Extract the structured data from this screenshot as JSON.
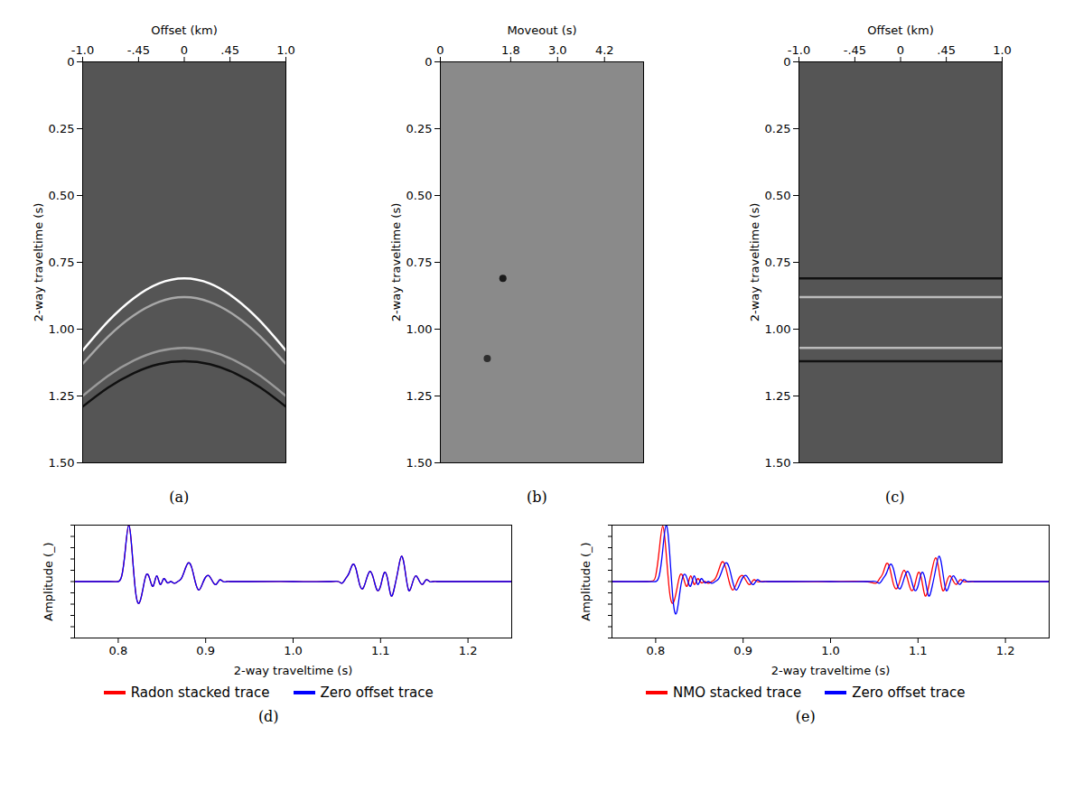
{
  "chart_data": [
    {
      "type": "gather",
      "title": "(a)",
      "x_label": "Offset (km)",
      "y_label": "2-way traveltime (s)",
      "color": "#555555",
      "x": [
        -1.0,
        -0.75,
        -0.5,
        -0.25,
        0,
        0.25,
        0.5,
        0.75,
        1.0
      ],
      "series": [
        {
          "color": "#ffffff",
          "values": [
            1.08,
            0.971,
            0.885,
            0.829,
            0.81,
            0.829,
            0.885,
            0.971,
            1.08
          ]
        },
        {
          "color": "#a8a8a8",
          "values": [
            1.13,
            1.028,
            0.949,
            0.898,
            0.88,
            0.898,
            0.949,
            1.028,
            1.13
          ]
        },
        {
          "color": "#9a9a9a",
          "values": [
            1.25,
            1.175,
            1.118,
            1.082,
            1.07,
            1.082,
            1.118,
            1.175,
            1.25
          ]
        },
        {
          "color": "#101010",
          "values": [
            1.29,
            1.219,
            1.165,
            1.131,
            1.12,
            1.131,
            1.165,
            1.219,
            1.29
          ]
        }
      ],
      "xlim": [
        -1.0,
        1.0
      ],
      "xticks": [
        {
          "value": -1.0,
          "label": "-1.0"
        },
        {
          "value": -0.45,
          "label": "-.45"
        },
        0,
        {
          "value": 0.45,
          "label": ".45"
        },
        {
          "value": 1.0,
          "label": "1.0"
        }
      ],
      "ylim": [
        0,
        1.5
      ],
      "yticks": [
        0,
        {
          "value": 0.25,
          "label": "0.25"
        },
        {
          "value": 0.5,
          "label": "0.50"
        },
        {
          "value": 0.75,
          "label": "0.75"
        },
        {
          "value": 1.0,
          "label": "1.00"
        },
        {
          "value": 1.25,
          "label": "1.25"
        },
        {
          "value": 1.5,
          "label": "1.50"
        }
      ]
    },
    {
      "type": "image",
      "title": "(b)",
      "x_label": "Moveout (s)",
      "y_label": "2-way traveltime (s)",
      "color": "#8a8a8a",
      "x": [
        1.6,
        1.2
      ],
      "values": [
        0.81,
        1.11
      ],
      "colors": [
        "#1a1a1a",
        "#2e2e2e"
      ],
      "xlim": [
        0,
        5.2
      ],
      "xticks": [
        0,
        1.8,
        {
          "value": 3.0,
          "label": "3.0"
        },
        4.2
      ],
      "ylim": [
        0,
        1.5
      ],
      "yticks": [
        0,
        {
          "value": 0.25,
          "label": "0.25"
        },
        {
          "value": 0.5,
          "label": "0.50"
        },
        {
          "value": 0.75,
          "label": "0.75"
        },
        {
          "value": 1.0,
          "label": "1.00"
        },
        {
          "value": 1.25,
          "label": "1.25"
        },
        {
          "value": 1.5,
          "label": "1.50"
        }
      ]
    },
    {
      "type": "gather",
      "title": "(c)",
      "x_label": "Offset (km)",
      "y_label": "2-way traveltime (s)",
      "color": "#555555",
      "x": [
        -1.0,
        -0.75,
        -0.5,
        -0.25,
        0,
        0.25,
        0.5,
        0.75,
        1.0
      ],
      "series": [
        {
          "color": "#111111",
          "values": [
            0.81,
            0.81,
            0.81,
            0.81,
            0.81,
            0.81,
            0.81,
            0.81,
            0.81
          ]
        },
        {
          "color": "#bbbbbb",
          "values": [
            0.88,
            0.88,
            0.88,
            0.88,
            0.88,
            0.88,
            0.88,
            0.88,
            0.88
          ]
        },
        {
          "color": "#bbbbbb",
          "values": [
            1.07,
            1.07,
            1.07,
            1.07,
            1.07,
            1.07,
            1.07,
            1.07,
            1.07
          ]
        },
        {
          "color": "#111111",
          "values": [
            1.12,
            1.12,
            1.12,
            1.12,
            1.12,
            1.12,
            1.12,
            1.12,
            1.12
          ]
        }
      ],
      "xlim": [
        -1.0,
        1.0
      ],
      "xticks": [
        {
          "value": -1.0,
          "label": "-1.0"
        },
        {
          "value": -0.45,
          "label": "-.45"
        },
        0,
        {
          "value": 0.45,
          "label": ".45"
        },
        {
          "value": 1.0,
          "label": "1.0"
        }
      ],
      "ylim": [
        0,
        1.5
      ],
      "yticks": [
        0,
        {
          "value": 0.25,
          "label": "0.25"
        },
        {
          "value": 0.5,
          "label": "0.50"
        },
        {
          "value": 0.75,
          "label": "0.75"
        },
        {
          "value": 1.0,
          "label": "1.00"
        },
        {
          "value": 1.25,
          "label": "1.25"
        },
        {
          "value": 1.5,
          "label": "1.50"
        }
      ]
    },
    {
      "type": "line",
      "title": "(d)",
      "x_label": "2-way traveltime (s)",
      "y_label": "Amplitude (_)",
      "legend": "bottom",
      "tick_labels": "x",
      "x": [
        0.75,
        0.79,
        0.8,
        0.804,
        0.808,
        0.812,
        0.816,
        0.82,
        0.824,
        0.828,
        0.832,
        0.836,
        0.84,
        0.844,
        0.848,
        0.852,
        0.856,
        0.86,
        0.864,
        0.868,
        0.872,
        0.876,
        0.88,
        0.884,
        0.888,
        0.892,
        0.896,
        0.9,
        0.904,
        0.908,
        0.912,
        0.916,
        0.92,
        0.924,
        0.928,
        0.95,
        1.0,
        1.04,
        1.052,
        1.056,
        1.06,
        1.064,
        1.068,
        1.072,
        1.076,
        1.08,
        1.084,
        1.088,
        1.092,
        1.096,
        1.1,
        1.104,
        1.108,
        1.112,
        1.116,
        1.12,
        1.124,
        1.128,
        1.132,
        1.136,
        1.14,
        1.144,
        1.148,
        1.152,
        1.156,
        1.16,
        1.164,
        1.18,
        1.25
      ],
      "series": [
        {
          "name": "Radon stacked trace",
          "color": "#ff0000",
          "values": [
            0,
            0,
            0,
            0.1,
            0.55,
            1.0,
            0.5,
            -0.2,
            -0.38,
            -0.15,
            0.12,
            0.05,
            -0.08,
            0.1,
            -0.05,
            0.05,
            -0.02,
            0,
            -0.03,
            0,
            0.05,
            0.2,
            0.33,
            0.25,
            0,
            -0.15,
            -0.05,
            0.08,
            0.1,
            0,
            -0.05,
            0.03,
            0,
            0,
            0,
            0,
            0,
            0,
            0,
            -0.03,
            0.05,
            0.15,
            0.3,
            0.22,
            -0.05,
            -0.12,
            0.05,
            0.18,
            0.05,
            -0.15,
            -0.08,
            0.15,
            0.05,
            -0.25,
            -0.1,
            0.2,
            0.45,
            0.2,
            -0.15,
            -0.05,
            0.1,
            0.02,
            -0.05,
            0.03,
            0,
            0,
            0,
            0,
            0
          ]
        },
        {
          "name": "Zero offset trace",
          "color": "#0000ff",
          "values": [
            0,
            0,
            0,
            0.1,
            0.55,
            1.0,
            0.5,
            -0.2,
            -0.38,
            -0.15,
            0.12,
            0.05,
            -0.08,
            0.1,
            -0.05,
            0.05,
            -0.02,
            0,
            -0.03,
            0,
            0.05,
            0.2,
            0.33,
            0.25,
            0,
            -0.15,
            -0.05,
            0.08,
            0.1,
            0,
            -0.05,
            0.03,
            0,
            0,
            0,
            0,
            0,
            0,
            0,
            -0.03,
            0.05,
            0.15,
            0.3,
            0.22,
            -0.05,
            -0.12,
            0.05,
            0.18,
            0.05,
            -0.15,
            -0.08,
            0.15,
            0.05,
            -0.25,
            -0.1,
            0.2,
            0.45,
            0.2,
            -0.15,
            -0.05,
            0.1,
            0.02,
            -0.05,
            0.03,
            0,
            0,
            0,
            0,
            0
          ]
        }
      ],
      "xlim": [
        0.75,
        1.25
      ],
      "xticks": [
        0.8,
        0.9,
        {
          "value": 1.0,
          "label": "1.0"
        },
        1.1,
        1.2
      ],
      "ylim": [
        -1,
        1
      ],
      "yticks": [
        -1,
        -0.8,
        -0.6,
        -0.4,
        -0.2,
        0,
        0.2,
        0.4,
        0.6,
        0.8,
        1
      ]
    },
    {
      "type": "line",
      "title": "(e)",
      "x_label": "2-way traveltime (s)",
      "y_label": "Amplitude (_)",
      "legend": "bottom",
      "tick_labels": "x",
      "x": [
        0.75,
        0.79,
        0.8,
        0.804,
        0.808,
        0.812,
        0.816,
        0.82,
        0.824,
        0.828,
        0.832,
        0.836,
        0.84,
        0.844,
        0.848,
        0.852,
        0.856,
        0.86,
        0.864,
        0.868,
        0.872,
        0.876,
        0.88,
        0.884,
        0.888,
        0.892,
        0.896,
        0.9,
        0.904,
        0.908,
        0.912,
        0.916,
        0.92,
        0.924,
        0.928,
        0.95,
        1.0,
        1.04,
        1.052,
        1.056,
        1.06,
        1.064,
        1.068,
        1.072,
        1.076,
        1.08,
        1.084,
        1.088,
        1.092,
        1.096,
        1.1,
        1.104,
        1.108,
        1.112,
        1.116,
        1.12,
        1.124,
        1.128,
        1.132,
        1.136,
        1.14,
        1.144,
        1.148,
        1.152,
        1.156,
        1.16,
        1.164,
        1.18,
        1.25
      ],
      "series": [
        {
          "name": "NMO stacked trace",
          "color": "#ff0000",
          "values": [
            0,
            0,
            0.1,
            0.55,
            0.98,
            0.5,
            -0.2,
            -0.38,
            -0.15,
            0.12,
            0.05,
            -0.08,
            0.1,
            -0.05,
            0.05,
            -0.02,
            0,
            -0.03,
            0,
            0.05,
            0.2,
            0.35,
            0.25,
            0,
            -0.15,
            -0.05,
            0.08,
            0.1,
            0,
            -0.05,
            0.03,
            0,
            0,
            0,
            0,
            0,
            0,
            0,
            -0.03,
            0.05,
            0.15,
            0.32,
            0.22,
            -0.05,
            -0.12,
            0.05,
            0.2,
            0.05,
            -0.15,
            -0.08,
            0.15,
            0.05,
            -0.25,
            -0.1,
            0.2,
            0.42,
            0.2,
            -0.15,
            -0.05,
            0.1,
            0.02,
            -0.05,
            0.03,
            0,
            0,
            0,
            0,
            0,
            0
          ]
        },
        {
          "name": "Zero offset trace",
          "color": "#0000ff",
          "values": [
            0,
            0,
            0,
            0.1,
            0.55,
            1.0,
            0.5,
            -0.35,
            -0.55,
            -0.15,
            0.12,
            0.05,
            -0.08,
            0.1,
            -0.05,
            0.05,
            -0.02,
            0,
            -0.03,
            0,
            0.05,
            0.2,
            0.33,
            0.25,
            0,
            -0.15,
            -0.05,
            0.08,
            0.1,
            0,
            -0.05,
            0.03,
            0,
            0,
            0,
            0,
            0,
            0,
            0,
            -0.03,
            0.05,
            0.15,
            0.3,
            0.22,
            -0.05,
            -0.12,
            0.05,
            0.18,
            0.05,
            -0.15,
            -0.08,
            0.15,
            0.05,
            -0.25,
            -0.1,
            0.2,
            0.45,
            0.2,
            -0.15,
            -0.05,
            0.1,
            0.02,
            -0.05,
            0.03,
            0,
            0,
            0,
            0,
            0
          ]
        }
      ],
      "xlim": [
        0.75,
        1.25
      ],
      "xticks": [
        0.8,
        0.9,
        {
          "value": 1.0,
          "label": "1.0"
        },
        1.1,
        1.2
      ],
      "ylim": [
        -1,
        1
      ],
      "yticks": [
        -1,
        -0.8,
        -0.6,
        -0.4,
        -0.2,
        0,
        0.2,
        0.4,
        0.6,
        0.8,
        1
      ]
    }
  ]
}
